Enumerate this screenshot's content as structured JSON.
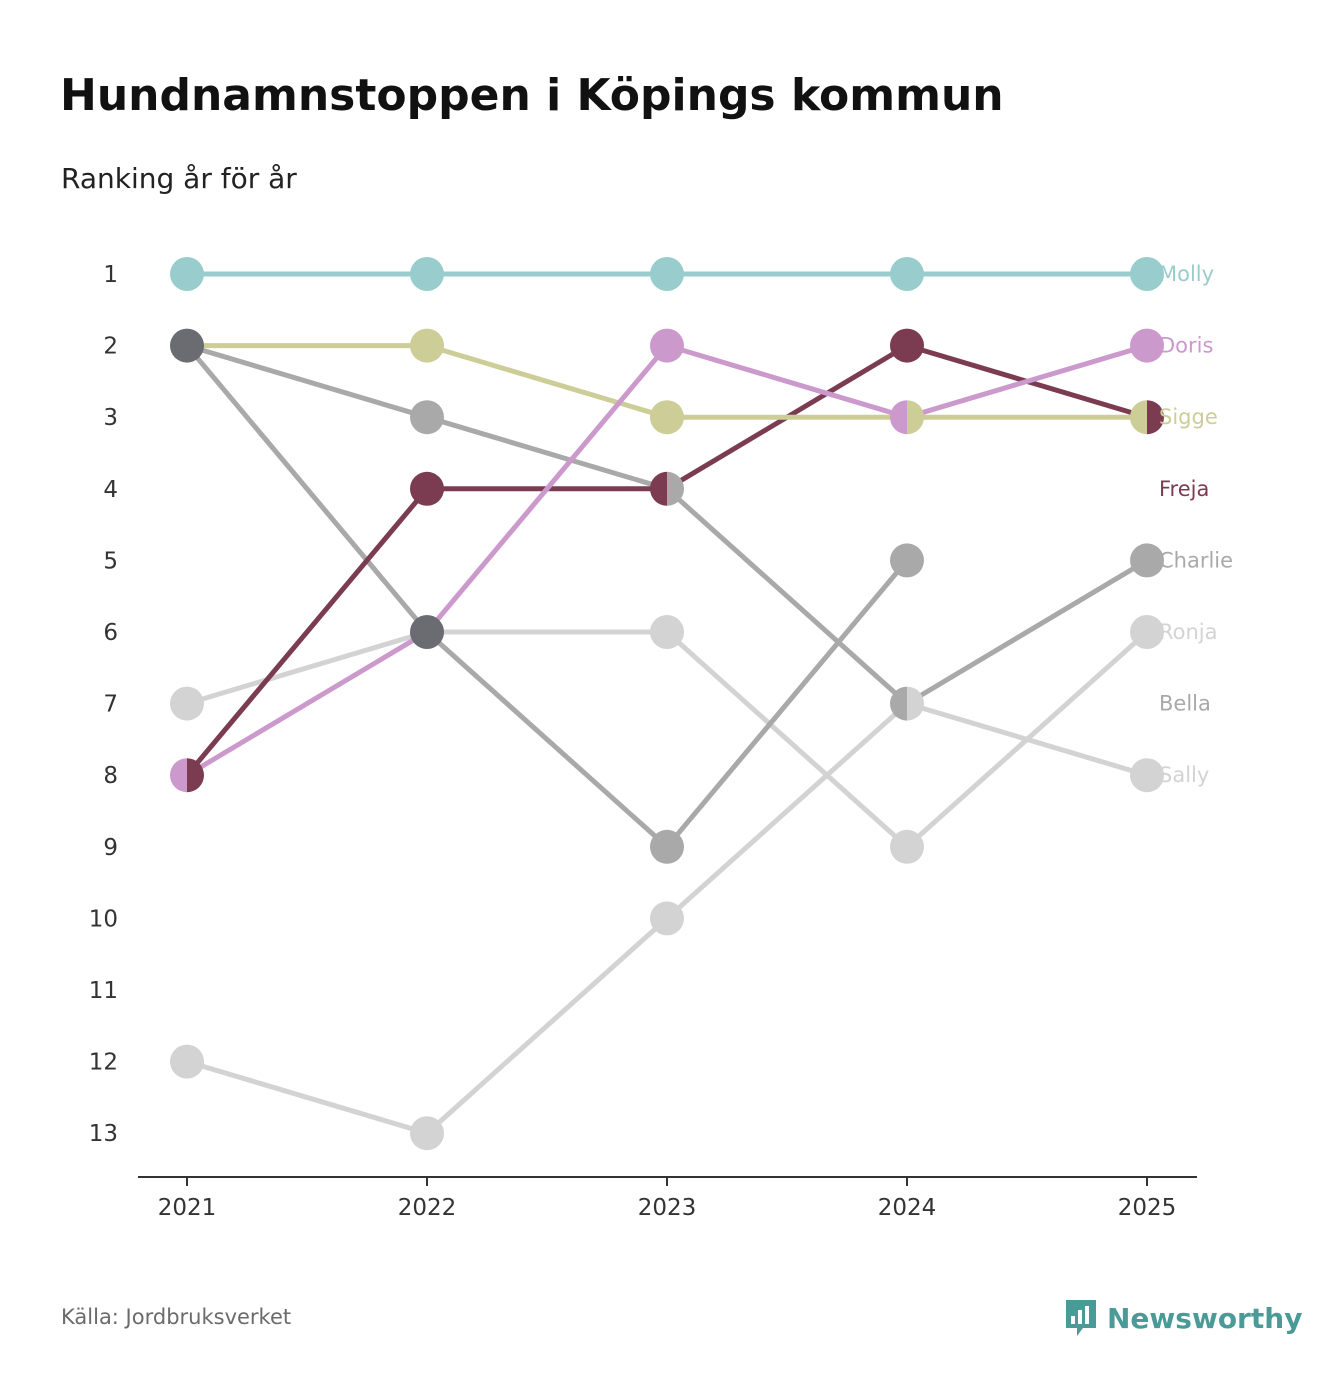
{
  "header": {
    "title": "Hundnamnstoppen i Köpings kommun",
    "subtitle": "Ranking år för år"
  },
  "footer": {
    "source": "Källa: Jordbruksverket",
    "brand": "Newsworthy",
    "brand_color": "#4a9a97"
  },
  "chart_data": {
    "type": "line",
    "title": "Hundnamnstoppen i Köpings kommun",
    "subtitle": "Ranking år för år",
    "x": [
      "2021",
      "2022",
      "2023",
      "2024",
      "2025"
    ],
    "y_ticks": [
      1,
      2,
      3,
      4,
      5,
      6,
      7,
      8,
      9,
      10,
      11,
      12,
      13
    ],
    "ylim": [
      1,
      13
    ],
    "y_inverted": true,
    "grid": false,
    "legend": "direct labels at right",
    "series": [
      {
        "name": "Sally",
        "color": "#d3d3d3",
        "values": [
          12,
          13,
          10,
          7,
          8
        ]
      },
      {
        "name": "Ronja",
        "color": "#d3d3d3",
        "values": [
          7,
          6,
          6,
          9,
          6
        ]
      },
      {
        "name": "Bella",
        "color": "#a9a9a9",
        "values": [
          2,
          6,
          9,
          5,
          null
        ]
      },
      {
        "name": "Charlie",
        "color": "#a9a9a9",
        "values": [
          2,
          3,
          4,
          7,
          5
        ]
      },
      {
        "name": "Freja",
        "color": "#7b3c51",
        "values": [
          8,
          4,
          4,
          2,
          3
        ]
      },
      {
        "name": "Sigge",
        "color": "#cdcd98",
        "values": [
          2,
          2,
          3,
          3,
          3
        ]
      },
      {
        "name": "Doris",
        "color": "#cc99cc",
        "values": [
          8,
          6,
          2,
          3,
          2
        ]
      },
      {
        "name": "Molly",
        "color": "#99cccc",
        "values": [
          1,
          1,
          1,
          1,
          1
        ]
      }
    ],
    "label_order": [
      "Molly",
      "Doris",
      "Sigge",
      "Freja",
      "Charlie",
      "Ronja",
      "Bella",
      "Sally"
    ]
  }
}
